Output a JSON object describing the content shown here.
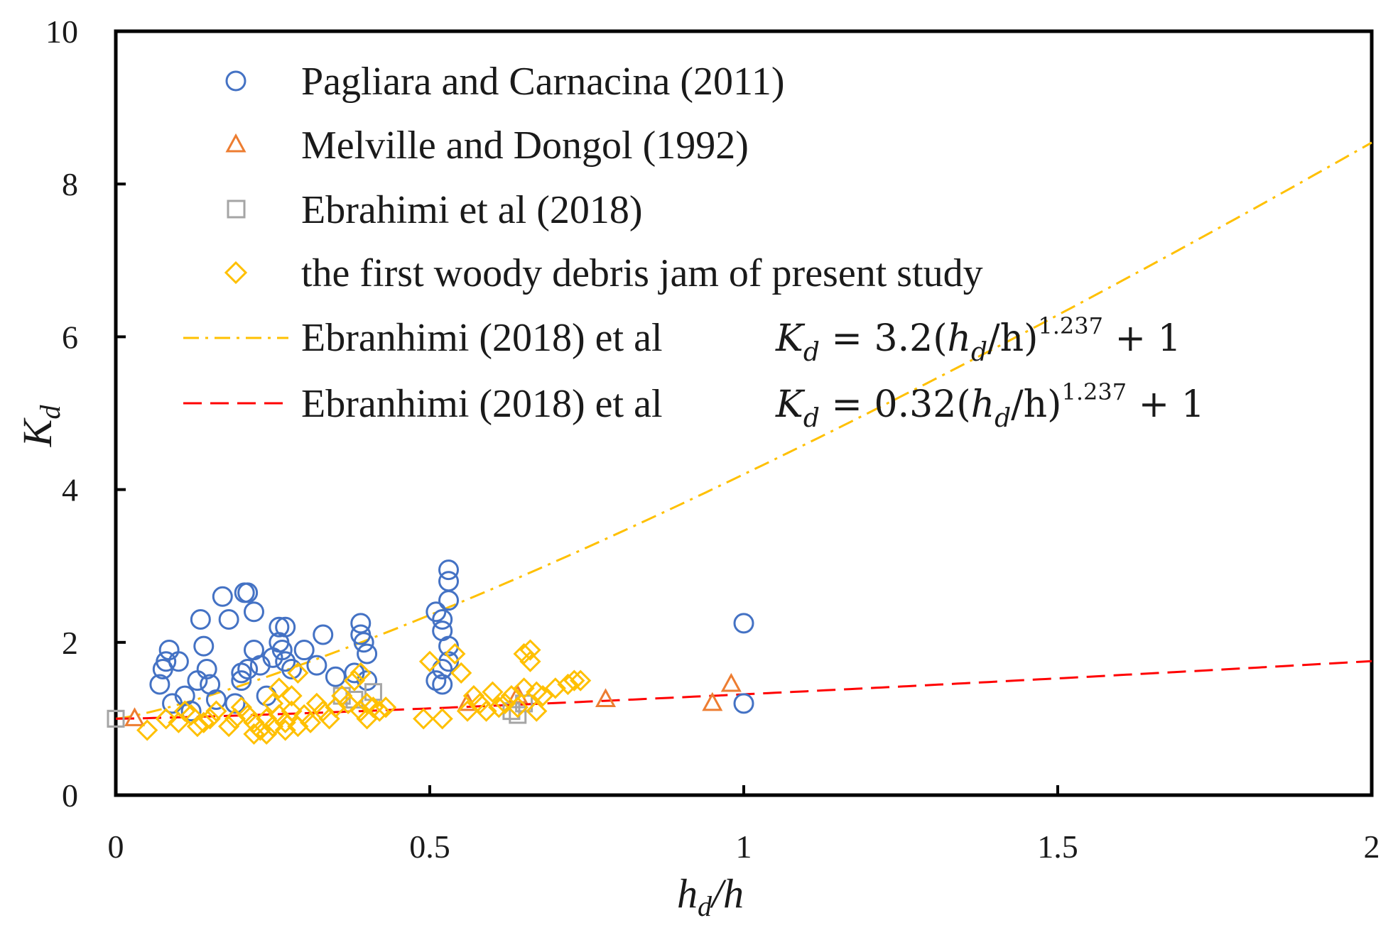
{
  "chart_data": {
    "type": "scatter",
    "xlabel": "h_d/h",
    "ylabel": "K_d",
    "xlim": [
      0,
      2
    ],
    "ylim": [
      0,
      10
    ],
    "xticks": [
      "0",
      "0.5",
      "1",
      "1.5",
      "2"
    ],
    "yticks": [
      "0",
      "2",
      "4",
      "6",
      "8",
      "10"
    ],
    "grid": false,
    "legend_position": "top-left",
    "colors": {
      "pagliara": "#4472C4",
      "melville": "#ED7D31",
      "ebrahimi_pts": "#A5A5A5",
      "present": "#FFC000",
      "fit_upper": "#FFC000",
      "fit_lower": "#FF0000",
      "axes": "#000000"
    },
    "series": [
      {
        "name": "Pagliara and Carnacina (2011)",
        "marker": "circle",
        "x": [
          0.07,
          0.075,
          0.08,
          0.085,
          0.09,
          0.1,
          0.11,
          0.12,
          0.13,
          0.135,
          0.14,
          0.145,
          0.15,
          0.16,
          0.17,
          0.18,
          0.19,
          0.2,
          0.2,
          0.205,
          0.21,
          0.21,
          0.22,
          0.22,
          0.23,
          0.24,
          0.25,
          0.26,
          0.26,
          0.265,
          0.27,
          0.27,
          0.28,
          0.3,
          0.32,
          0.33,
          0.35,
          0.38,
          0.39,
          0.39,
          0.395,
          0.4,
          0.4,
          0.51,
          0.52,
          0.52,
          0.53,
          0.53,
          0.53,
          0.53,
          0.53,
          0.51,
          0.52,
          0.52,
          1.0,
          1.0
        ],
        "y": [
          1.45,
          1.65,
          1.75,
          1.9,
          1.2,
          1.75,
          1.3,
          1.1,
          1.5,
          2.3,
          1.95,
          1.65,
          1.45,
          1.25,
          2.6,
          2.3,
          1.2,
          1.5,
          1.6,
          2.65,
          2.65,
          1.65,
          1.9,
          2.4,
          1.7,
          1.3,
          1.8,
          2.2,
          2.0,
          1.9,
          1.75,
          2.2,
          1.65,
          1.9,
          1.7,
          2.1,
          1.55,
          1.6,
          2.25,
          2.1,
          2.0,
          1.85,
          1.5,
          2.4,
          2.3,
          2.15,
          2.95,
          2.8,
          2.55,
          1.95,
          1.75,
          1.5,
          1.45,
          1.65,
          2.25,
          1.2
        ]
      },
      {
        "name": "Melville and Dongol (1992)",
        "marker": "triangle",
        "x": [
          0.03,
          0.56,
          0.64,
          0.78,
          0.95,
          0.98
        ],
        "y": [
          1.0,
          1.2,
          1.3,
          1.25,
          1.2,
          1.45
        ]
      },
      {
        "name": "Ebrahimi et al (2018)",
        "marker": "square",
        "x": [
          0.0,
          0.0,
          0.36,
          0.38,
          0.41,
          0.63,
          0.64,
          0.65
        ],
        "y": [
          1.0,
          1.0,
          1.3,
          1.25,
          1.35,
          1.1,
          1.05,
          1.2
        ]
      },
      {
        "name": "the first woody debris jam of present study",
        "marker": "diamond",
        "x": [
          0.05,
          0.08,
          0.1,
          0.11,
          0.12,
          0.13,
          0.14,
          0.15,
          0.16,
          0.18,
          0.19,
          0.2,
          0.21,
          0.22,
          0.22,
          0.23,
          0.24,
          0.24,
          0.25,
          0.25,
          0.26,
          0.26,
          0.27,
          0.27,
          0.28,
          0.28,
          0.29,
          0.29,
          0.3,
          0.31,
          0.32,
          0.33,
          0.34,
          0.35,
          0.36,
          0.37,
          0.38,
          0.39,
          0.39,
          0.4,
          0.4,
          0.41,
          0.42,
          0.43,
          0.49,
          0.5,
          0.52,
          0.54,
          0.55,
          0.56,
          0.57,
          0.58,
          0.59,
          0.6,
          0.61,
          0.62,
          0.63,
          0.64,
          0.65,
          0.65,
          0.66,
          0.66,
          0.67,
          0.67,
          0.68,
          0.7,
          0.72,
          0.73,
          0.74
        ],
        "y": [
          0.85,
          1.0,
          0.95,
          1.1,
          1.05,
          0.9,
          0.95,
          1.0,
          1.1,
          0.9,
          1.0,
          1.15,
          1.05,
          0.8,
          0.95,
          0.85,
          1.0,
          0.8,
          1.2,
          0.9,
          1.4,
          1.05,
          0.95,
          0.85,
          1.3,
          1.1,
          1.6,
          0.9,
          1.05,
          0.95,
          1.2,
          1.1,
          1.0,
          1.15,
          1.3,
          1.2,
          1.5,
          1.1,
          1.6,
          1.0,
          1.2,
          1.15,
          1.1,
          1.15,
          1.0,
          1.75,
          1.0,
          1.85,
          1.6,
          1.1,
          1.3,
          1.2,
          1.1,
          1.35,
          1.15,
          1.2,
          1.3,
          1.15,
          1.85,
          1.4,
          1.9,
          1.75,
          1.35,
          1.1,
          1.3,
          1.4,
          1.45,
          1.5,
          1.5
        ]
      }
    ],
    "lines": [
      {
        "name": "Ebranhimi (2018) et al",
        "equation": "K_d = 3.2(h_d/h)^{1.237} + 1",
        "coef": 3.2,
        "exp": 1.237,
        "intercept": 1,
        "style": "dashdot"
      },
      {
        "name": " Ebranhimi (2018) et al",
        "equation": "K_d = 0.32(h_d/h)^{1.237} + 1",
        "coef": 0.32,
        "exp": 1.237,
        "intercept": 1,
        "style": "dashed"
      }
    ],
    "legend": {
      "s0": "Pagliara and Carnacina (2011)",
      "s1": "Melville and Dongol (1992)",
      "s2": "Ebrahimi et al (2018)",
      "s3": "the first woody debris jam of present study",
      "l0": "Ebranhimi (2018) et al",
      "l1": " Ebranhimi (2018) et al",
      "eq0_lhs": "K",
      "eq0_sub": "d",
      "eq0_mid": " = 3.2(",
      "eq0_h": "h",
      "eq0_hsub": "d",
      "eq0_slash": "/h)",
      "eq0_exp": "1.237",
      "eq0_tail": " + 1",
      "eq1_lhs": "K",
      "eq1_sub": "d",
      "eq1_mid": " = 0.32(",
      "eq1_h": "h",
      "eq1_hsub": "d",
      "eq1_slash": "/h)",
      "eq1_exp": "1.237",
      "eq1_tail": " + 1"
    },
    "axis_labels": {
      "x_main": "h",
      "x_sub": "d",
      "x_tail": "/h",
      "y_main": "K",
      "y_sub": "d"
    }
  }
}
